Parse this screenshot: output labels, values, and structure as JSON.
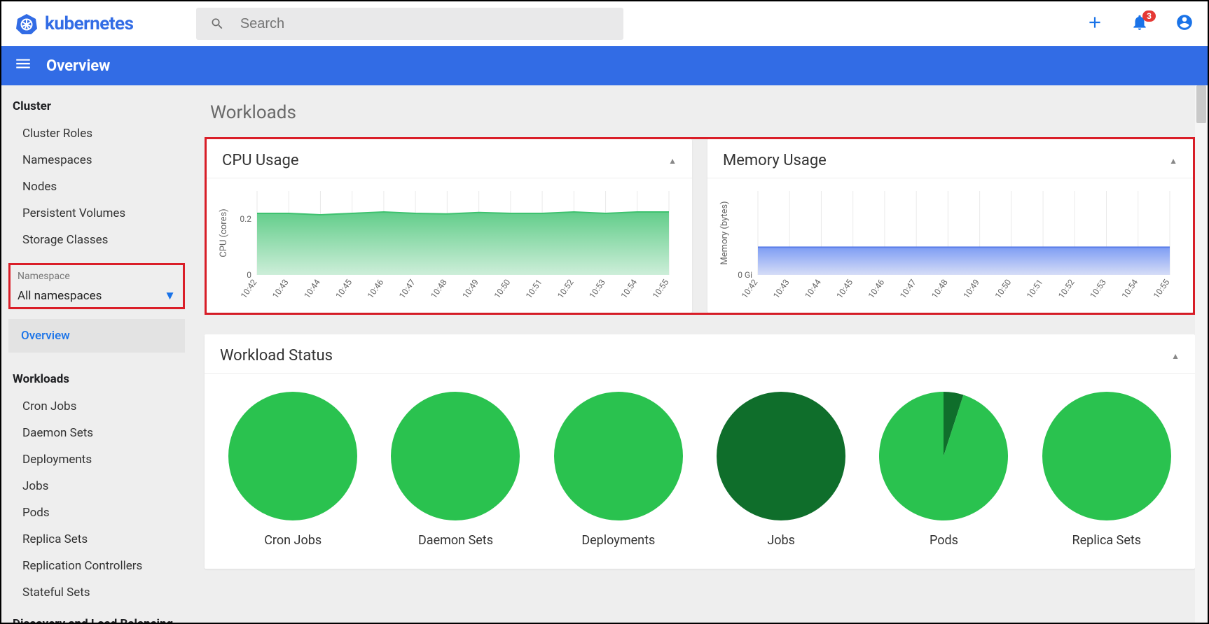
{
  "brand": "kubernetes",
  "search": {
    "placeholder": "Search"
  },
  "notifications": {
    "count": "3"
  },
  "bluebar": {
    "title": "Overview"
  },
  "sidebar": {
    "cluster_heading": "Cluster",
    "cluster_items": [
      "Cluster Roles",
      "Namespaces",
      "Nodes",
      "Persistent Volumes",
      "Storage Classes"
    ],
    "namespace_label": "Namespace",
    "namespace_value": "All namespaces",
    "active": "Overview",
    "workloads_heading": "Workloads",
    "workloads_items": [
      "Cron Jobs",
      "Daemon Sets",
      "Deployments",
      "Jobs",
      "Pods",
      "Replica Sets",
      "Replication Controllers",
      "Stateful Sets"
    ],
    "discovery_heading": "Discovery and Load Balancing"
  },
  "page": {
    "title": "Workloads"
  },
  "cpu_chart": {
    "title": "CPU Usage",
    "ylabel": "CPU (cores)",
    "yticks": [
      "0",
      "0.2"
    ],
    "ylim": [
      0,
      0.3
    ],
    "xticks": [
      "10:42",
      "10:43",
      "10:44",
      "10:45",
      "10:46",
      "10:47",
      "10:48",
      "10:49",
      "10:50",
      "10:51",
      "10:52",
      "10:53",
      "10:54",
      "10:55"
    ],
    "values": [
      0.22,
      0.22,
      0.215,
      0.22,
      0.225,
      0.22,
      0.218,
      0.223,
      0.22,
      0.22,
      0.225,
      0.22,
      0.225,
      0.225
    ],
    "fill_top": "#62cd8a",
    "fill_bottom": "#cdeed9",
    "stroke": "#3ec26f",
    "grid": "#eaeaea",
    "bg": "#ffffff"
  },
  "mem_chart": {
    "title": "Memory Usage",
    "ylabel": "Memory (bytes)",
    "yticks": [
      "0 Gi"
    ],
    "ylim": [
      0,
      1.0
    ],
    "xticks": [
      "10:42",
      "10:43",
      "10:44",
      "10:45",
      "10:46",
      "10:47",
      "10:48",
      "10:49",
      "10:50",
      "10:51",
      "10:52",
      "10:53",
      "10:54",
      "10:55"
    ],
    "values": [
      0.33,
      0.33,
      0.33,
      0.33,
      0.33,
      0.33,
      0.33,
      0.33,
      0.33,
      0.33,
      0.33,
      0.33,
      0.33,
      0.33
    ],
    "fill_top": "#7e9df4",
    "fill_bottom": "#d6ddf7",
    "stroke": "#5a7de8",
    "grid": "#eaeaea",
    "bg": "#ffffff"
  },
  "status": {
    "title": "Workload Status",
    "pies": [
      {
        "label": "Cron Jobs",
        "slices": [
          {
            "color": "#2ac24f",
            "fraction": 1.0
          }
        ]
      },
      {
        "label": "Daemon Sets",
        "slices": [
          {
            "color": "#2ac24f",
            "fraction": 1.0
          }
        ]
      },
      {
        "label": "Deployments",
        "slices": [
          {
            "color": "#2ac24f",
            "fraction": 1.0
          }
        ]
      },
      {
        "label": "Jobs",
        "slices": [
          {
            "color": "#0f6e2b",
            "fraction": 1.0
          }
        ]
      },
      {
        "label": "Pods",
        "slices": [
          {
            "color": "#0f6e2b",
            "fraction": 0.05
          },
          {
            "color": "#2ac24f",
            "fraction": 0.95
          }
        ]
      },
      {
        "label": "Replica Sets",
        "slices": [
          {
            "color": "#2ac24f",
            "fraction": 1.0
          }
        ]
      }
    ],
    "radius": 92
  }
}
